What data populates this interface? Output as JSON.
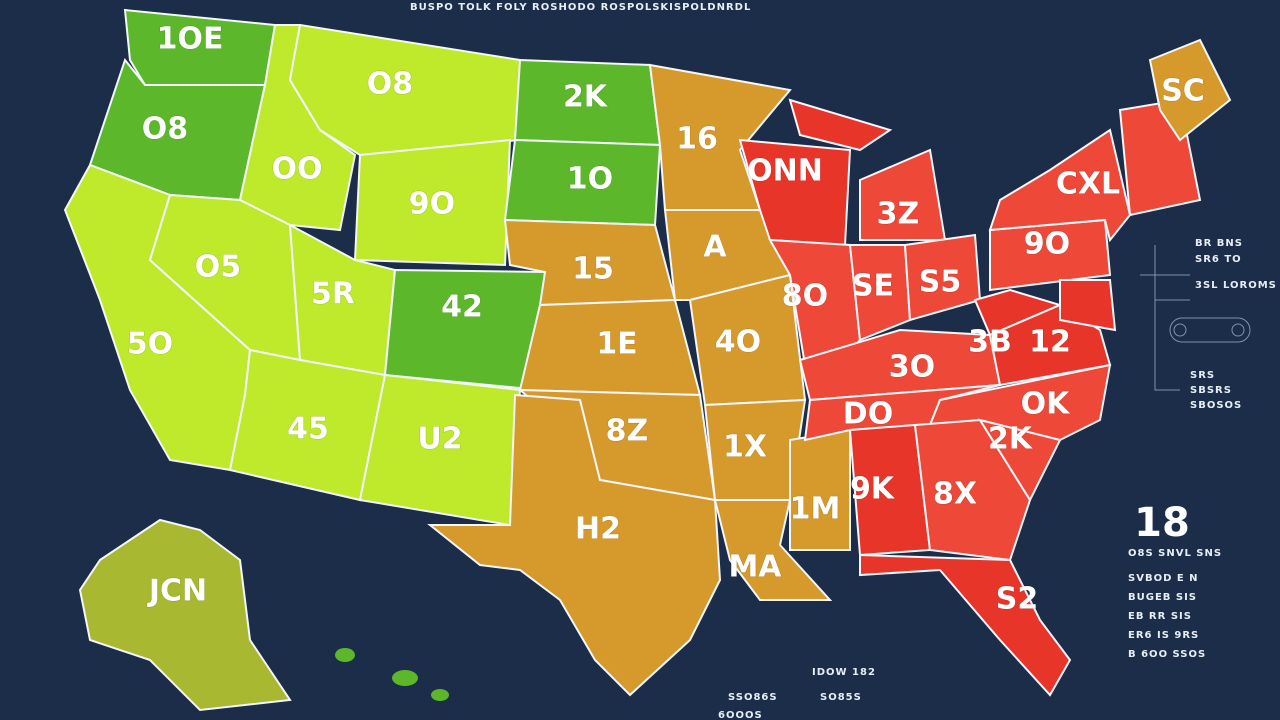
{
  "header": {
    "title": "BUSPO TOLK FOLY ROSHODO ROSPOLSKISPOLDNRDL"
  },
  "map": {
    "states": [
      {
        "label": "1OE"
      },
      {
        "label": "O8"
      },
      {
        "label": "OO"
      },
      {
        "label": "O8"
      },
      {
        "label": "9O"
      },
      {
        "label": "O5"
      },
      {
        "label": "5R"
      },
      {
        "label": "5O"
      },
      {
        "label": "42"
      },
      {
        "label": "45"
      },
      {
        "label": "U2"
      },
      {
        "label": "2K"
      },
      {
        "label": "1O"
      },
      {
        "label": "15"
      },
      {
        "label": "1E"
      },
      {
        "label": "8Z"
      },
      {
        "label": "H2"
      },
      {
        "label": "16"
      },
      {
        "label": "A"
      },
      {
        "label": "4O"
      },
      {
        "label": "1X"
      },
      {
        "label": "MA"
      },
      {
        "label": "1M"
      },
      {
        "label": "ONN"
      },
      {
        "label": "3Z"
      },
      {
        "label": "8O"
      },
      {
        "label": "SE"
      },
      {
        "label": "S5"
      },
      {
        "label": "9O"
      },
      {
        "label": "CXL"
      },
      {
        "label": "3O"
      },
      {
        "label": "3B"
      },
      {
        "label": "12"
      },
      {
        "label": "DO"
      },
      {
        "label": "OK"
      },
      {
        "label": "9K"
      },
      {
        "label": "8X"
      },
      {
        "label": "2K"
      },
      {
        "label": "S2"
      },
      {
        "label": "SC"
      },
      {
        "label": "JCN"
      }
    ]
  },
  "legend": {
    "top": [
      "BR BNS",
      "SR6 TO",
      "3SL LOROMS",
      "SRS",
      "SBSRS",
      "SBOSOS"
    ],
    "value": "18",
    "caption": "O8S SNVL SNS",
    "lines": [
      "SVBOD E N",
      "BUGEB SIS",
      "EB RR SIS",
      "ER6 IS 9RS",
      "B 6OO SSOS"
    ]
  },
  "footer": [
    "IDOW 182",
    "SSO86S",
    "SO85S",
    "6OOOS"
  ]
}
